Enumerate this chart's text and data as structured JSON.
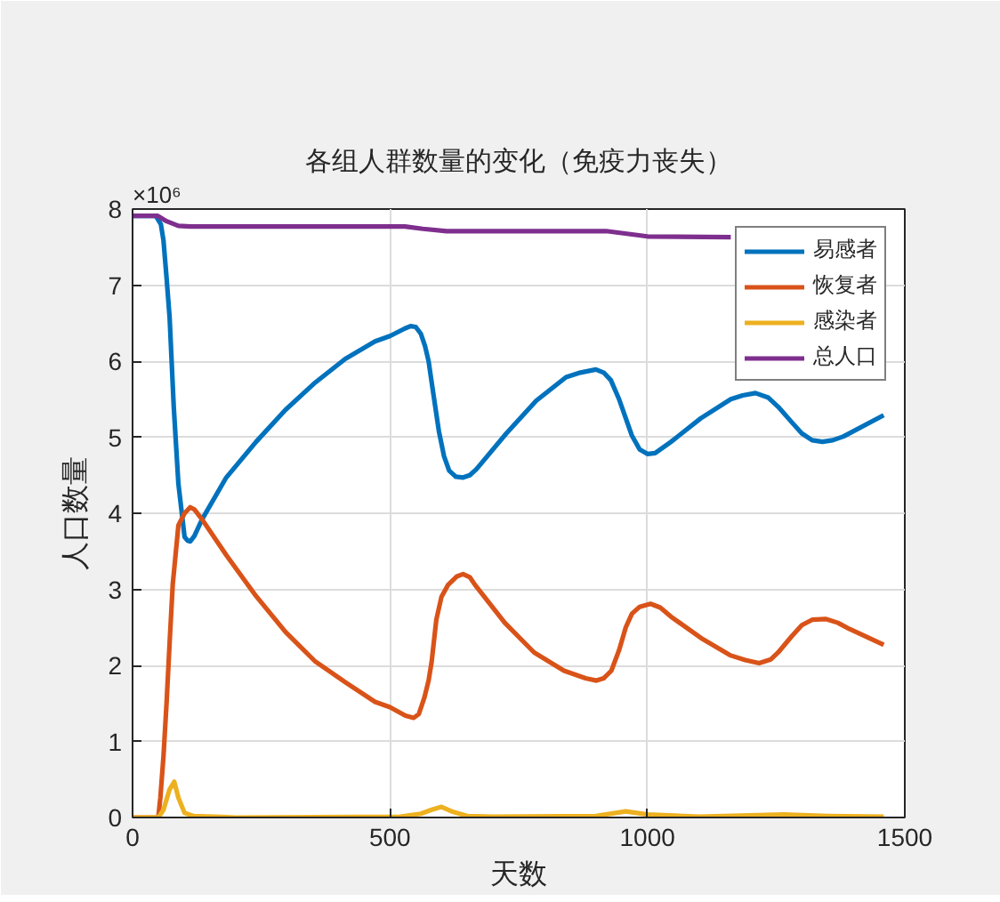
{
  "chart_data": {
    "type": "line",
    "title": "各组人群数量的变化（免疫力丧失）",
    "xlabel": "天数",
    "ylabel": "人口数量",
    "annotations": [
      "×10⁶"
    ],
    "xlim": [
      0,
      1500
    ],
    "ylim": [
      0,
      8
    ],
    "xticks": [
      0,
      500,
      1000,
      1500
    ],
    "yticks": [
      0,
      1,
      2,
      3,
      4,
      5,
      6,
      7,
      8
    ],
    "grid": true,
    "legend": "top right",
    "line_style": "solid",
    "series": [
      {
        "name": "易感者",
        "color": "#0072bd",
        "x": [
          0,
          45,
          55,
          60,
          66,
          72,
          80,
          89,
          101,
          107,
          112,
          120,
          135,
          182,
          240,
          297,
          355,
          413,
          471,
          500,
          529,
          540,
          550,
          560,
          568,
          575,
          581,
          588,
          595,
          605,
          615,
          628,
          642,
          655,
          668,
          726,
          784,
          842,
          870,
          900,
          915,
          929,
          945,
          958,
          970,
          985,
          1000,
          1015,
          1046,
          1104,
          1162,
          1185,
          1210,
          1235,
          1254,
          1280,
          1300,
          1320,
          1340,
          1360,
          1381,
          1459
        ],
        "values": [
          7.91,
          7.91,
          7.8,
          7.59,
          7.1,
          6.57,
          5.4,
          4.39,
          3.69,
          3.64,
          3.63,
          3.7,
          3.92,
          4.47,
          4.94,
          5.36,
          5.72,
          6.03,
          6.26,
          6.33,
          6.43,
          6.46,
          6.45,
          6.36,
          6.2,
          6.0,
          5.72,
          5.4,
          5.08,
          4.75,
          4.56,
          4.48,
          4.47,
          4.5,
          4.58,
          5.05,
          5.48,
          5.79,
          5.85,
          5.89,
          5.85,
          5.75,
          5.5,
          5.25,
          5.02,
          4.84,
          4.78,
          4.79,
          4.94,
          5.25,
          5.5,
          5.55,
          5.58,
          5.52,
          5.4,
          5.2,
          5.05,
          4.96,
          4.94,
          4.96,
          5.01,
          5.29
        ]
      },
      {
        "name": "恢复者",
        "color": "#d95319",
        "x": [
          0,
          50,
          54,
          60,
          66,
          72,
          78,
          89,
          101,
          112,
          120,
          135,
          182,
          240,
          297,
          355,
          413,
          471,
          500,
          530,
          546,
          556,
          567,
          575,
          581,
          590,
          600,
          613,
          630,
          642,
          655,
          665,
          723,
          780,
          838,
          880,
          901,
          915,
          930,
          945,
          958,
          970,
          985,
          1006,
          1025,
          1046,
          1104,
          1162,
          1190,
          1217,
          1240,
          1254,
          1280,
          1300,
          1320,
          1346,
          1370,
          1392,
          1459
        ],
        "values": [
          0,
          0,
          0.26,
          0.8,
          1.5,
          2.3,
          3.06,
          3.84,
          4.0,
          4.08,
          4.05,
          3.92,
          3.45,
          2.91,
          2.44,
          2.05,
          1.78,
          1.52,
          1.45,
          1.34,
          1.31,
          1.36,
          1.58,
          1.8,
          2.05,
          2.6,
          2.9,
          3.06,
          3.17,
          3.2,
          3.16,
          3.06,
          2.56,
          2.17,
          1.93,
          1.83,
          1.8,
          1.83,
          1.93,
          2.2,
          2.5,
          2.68,
          2.77,
          2.81,
          2.76,
          2.64,
          2.36,
          2.13,
          2.07,
          2.03,
          2.08,
          2.17,
          2.38,
          2.53,
          2.6,
          2.61,
          2.56,
          2.48,
          2.27
        ]
      },
      {
        "name": "感染者",
        "color": "#edb120",
        "x": [
          0,
          50,
          60,
          72,
          81,
          89,
          101,
          118,
          200,
          520,
          560,
          580,
          600,
          620,
          650,
          700,
          900,
          958,
          1000,
          1100,
          1265,
          1350,
          1459
        ],
        "values": [
          0,
          0,
          0.1,
          0.37,
          0.47,
          0.26,
          0.06,
          0.02,
          0,
          0.01,
          0.05,
          0.1,
          0.14,
          0.08,
          0.02,
          0.01,
          0.02,
          0.08,
          0.04,
          0.01,
          0.04,
          0.02,
          0.01
        ]
      },
      {
        "name": "总人口",
        "color": "#7e2f8e",
        "x": [
          0,
          49,
          66,
          89,
          112,
          529,
          564,
          610,
          920,
          1000,
          1162
        ],
        "values": [
          7.91,
          7.91,
          7.84,
          7.78,
          7.77,
          7.77,
          7.74,
          7.71,
          7.71,
          7.64,
          7.63
        ]
      }
    ]
  }
}
